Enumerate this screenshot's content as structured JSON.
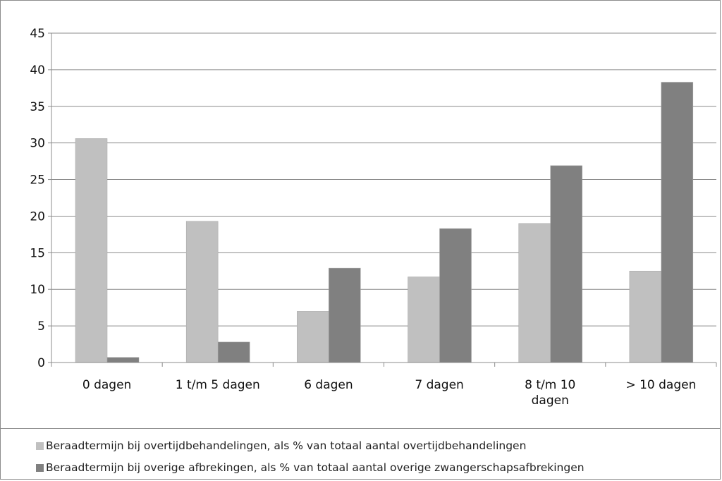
{
  "chart_data": {
    "type": "bar",
    "title": "",
    "xlabel": "",
    "ylabel": "",
    "ylim": [
      0,
      45
    ],
    "yticks": [
      0,
      5,
      10,
      15,
      20,
      25,
      30,
      35,
      40,
      45
    ],
    "grid": true,
    "legend_position": "bottom",
    "categories": [
      [
        "0 dagen"
      ],
      [
        "1 t/m 5 dagen"
      ],
      [
        "6 dagen"
      ],
      [
        "7 dagen"
      ],
      [
        "8 t/m 10",
        "dagen"
      ],
      [
        "> 10 dagen"
      ]
    ],
    "series": [
      {
        "name": "Beraadtermijn bij overtijdbehandelingen, als % van totaal aantal overtijdbehandelingen",
        "color": "#c0c0c0",
        "values": [
          30.6,
          19.3,
          7.0,
          11.7,
          19.0,
          12.5
        ]
      },
      {
        "name": "Beraadtermijn bij overige afbrekingen, als % van totaal aantal overige zwangerschapsafbrekingen",
        "color": "#808080",
        "values": [
          0.7,
          2.8,
          12.9,
          18.3,
          26.9,
          38.3
        ]
      }
    ]
  }
}
